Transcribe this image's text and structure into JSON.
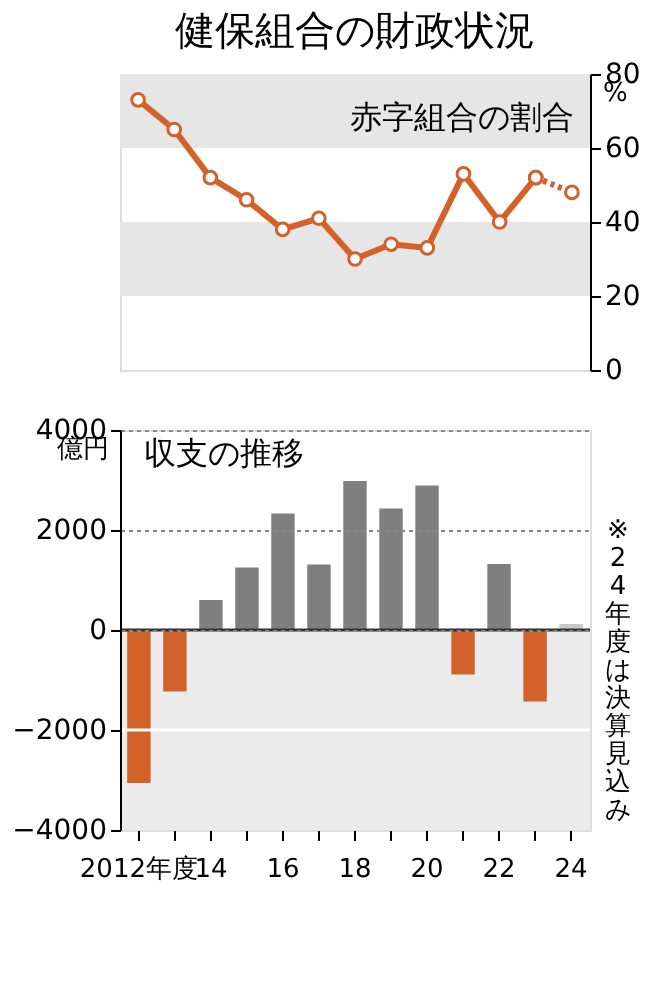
{
  "chart_data": [
    {
      "type": "line",
      "title": "健保組合の財政状況",
      "subtitle": "赤字組合の割合",
      "ylabel": "%",
      "categories": [
        null,
        null,
        null,
        null,
        null,
        null,
        null,
        null,
        null,
        null,
        null,
        null,
        null
      ],
      "series": [
        {
          "color": "#d2622a",
          "values": [
            73,
            65,
            52,
            46,
            38,
            41,
            30,
            34,
            33,
            53,
            40,
            52,
            null
          ]
        },
        {
          "color": "#d2622a",
          "values": [
            null,
            null,
            null,
            null,
            null,
            null,
            null,
            null,
            null,
            null,
            null,
            52,
            48
          ],
          "line_style": "dotted"
        }
      ],
      "ylim": [
        0,
        80
      ],
      "yticks": [
        0,
        20,
        40,
        60,
        80
      ],
      "bands": [
        {
          "axis": "y",
          "from": 20,
          "to": 40,
          "color": "#e6e6e6"
        },
        {
          "axis": "y",
          "from": 60,
          "to": 80,
          "color": "#e6e6e6"
        }
      ],
      "tick_labels": "y",
      "marker": "circle",
      "line_style": "solid"
    },
    {
      "type": "bar",
      "title": "収支の推移",
      "ylabel": "億円",
      "categories": [
        "2012年度",
        null,
        "14",
        null,
        "16",
        null,
        "18",
        null,
        "20",
        null,
        "22",
        null,
        "24"
      ],
      "values": [
        -3060,
        -1230,
        600,
        1250,
        2330,
        1310,
        2980,
        2430,
        2890,
        -890,
        1320,
        -1430,
        120
      ],
      "colors": [
        "#d2622a",
        "#d2622a",
        "#7f7f7f",
        "#7f7f7f",
        "#7f7f7f",
        "#7f7f7f",
        "#7f7f7f",
        "#7f7f7f",
        "#7f7f7f",
        "#d2622a",
        "#7f7f7f",
        "#d2622a",
        "#c8c8c8"
      ],
      "ylim": [
        -4000,
        4000
      ],
      "yticks": [
        -4000,
        -2000,
        0,
        2000,
        4000
      ],
      "bands": [
        {
          "axis": "y",
          "from": -4000,
          "to": 0,
          "color": "#ebebeb"
        }
      ],
      "ref_lines": [
        {
          "axis": "y",
          "value": 0,
          "color": "#333333"
        },
        {
          "axis": "y",
          "value": -2000,
          "color": "#ffffff"
        }
      ],
      "grid": "y",
      "annotations": [
        "※24年度は決算見込み"
      ]
    }
  ]
}
